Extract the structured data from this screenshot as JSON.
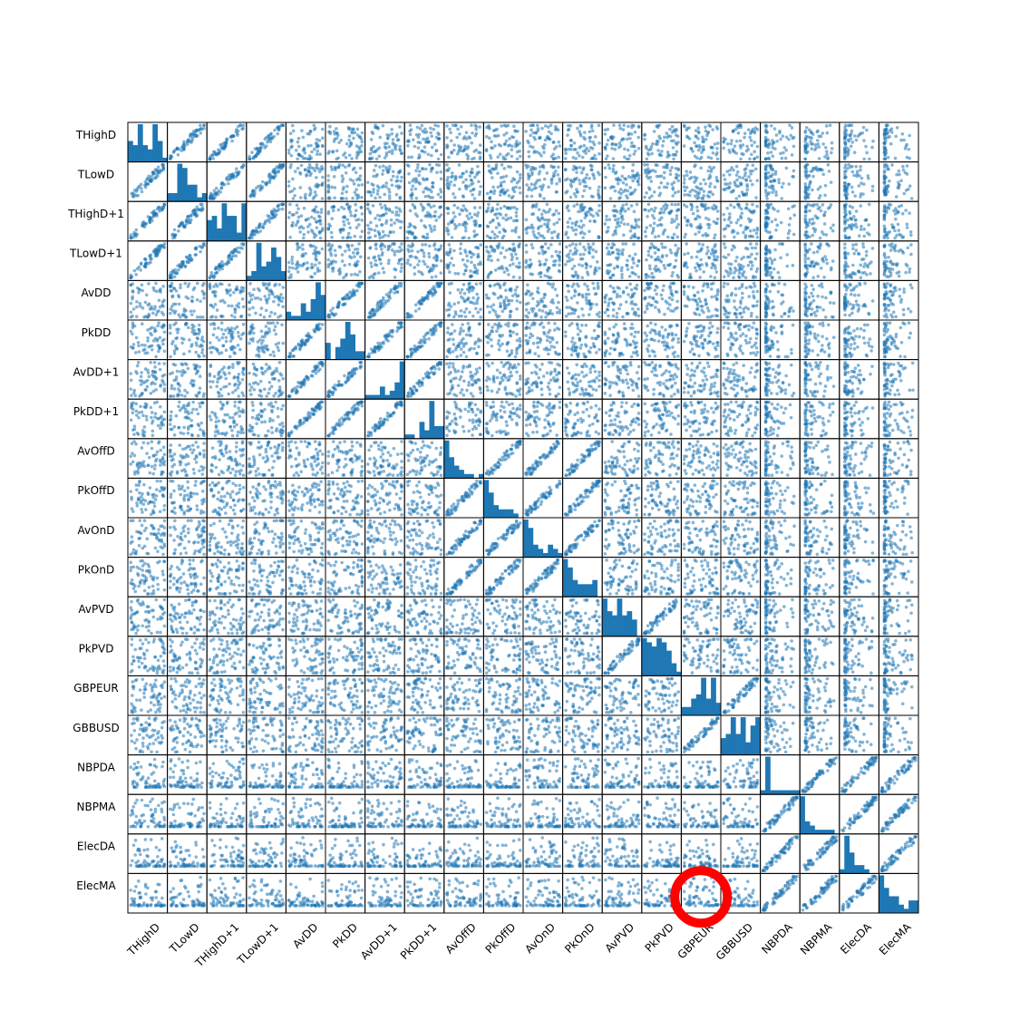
{
  "chart_data": {
    "type": "scatter",
    "subtype": "scatter-matrix",
    "title": "",
    "variables": [
      "THighD",
      "TLowD",
      "THighD+1",
      "TLowD+1",
      "AvDD",
      "PkDD",
      "AvDD+1",
      "PkDD+1",
      "AvOffD",
      "PkOffD",
      "AvOnD",
      "PkOnD",
      "AvPVD",
      "PkPVD",
      "GBPEUR",
      "GBBUSD",
      "NBPDA",
      "NBPMA",
      "ElecDA",
      "ElecMA"
    ],
    "diagonal": "histogram",
    "histograms": [
      [
        5,
        4,
        9,
        4,
        3,
        9,
        5,
        1
      ],
      [
        2,
        2,
        9,
        8,
        4,
        4,
        1,
        2
      ],
      [
        5,
        6,
        3,
        9,
        6,
        6,
        2,
        9
      ],
      [
        1,
        2,
        8,
        3,
        4,
        7,
        5,
        2
      ],
      [
        2,
        1,
        1,
        4,
        2,
        5,
        9,
        6
      ],
      [
        4,
        0,
        3,
        5,
        9,
        6,
        2,
        2
      ],
      [
        1,
        1,
        1,
        3,
        1,
        2,
        4,
        9
      ],
      [
        1,
        1,
        0,
        4,
        2,
        9,
        3,
        3
      ],
      [
        9,
        5,
        3,
        2,
        1,
        1,
        0,
        1
      ],
      [
        9,
        6,
        3,
        2,
        2,
        2,
        1,
        0
      ],
      [
        9,
        7,
        3,
        2,
        1,
        3,
        2,
        1
      ],
      [
        9,
        7,
        4,
        3,
        3,
        3,
        4,
        0
      ],
      [
        9,
        6,
        5,
        9,
        5,
        6,
        4,
        0
      ],
      [
        9,
        8,
        7,
        9,
        8,
        6,
        3,
        1
      ],
      [
        2,
        2,
        4,
        5,
        9,
        4,
        9,
        3
      ],
      [
        4,
        5,
        9,
        5,
        9,
        3,
        7,
        9
      ],
      [
        1,
        9,
        1,
        1,
        1,
        1,
        1,
        1
      ],
      [
        9,
        3,
        2,
        1,
        1,
        1,
        1,
        0
      ],
      [
        1,
        9,
        5,
        2,
        2,
        1,
        0,
        0
      ],
      [
        9,
        6,
        4,
        4,
        2,
        1,
        3,
        3
      ]
    ],
    "points_per_panel": 60,
    "grid": false,
    "legend": "none",
    "annotation": {
      "type": "circle",
      "panel_row": "ElecMA",
      "panel_col": "GBPEUR"
    }
  },
  "colors": {
    "points": "#1f77b4",
    "bars": "#1f77b4",
    "frame": "#000000",
    "highlight": "#ff0000"
  }
}
